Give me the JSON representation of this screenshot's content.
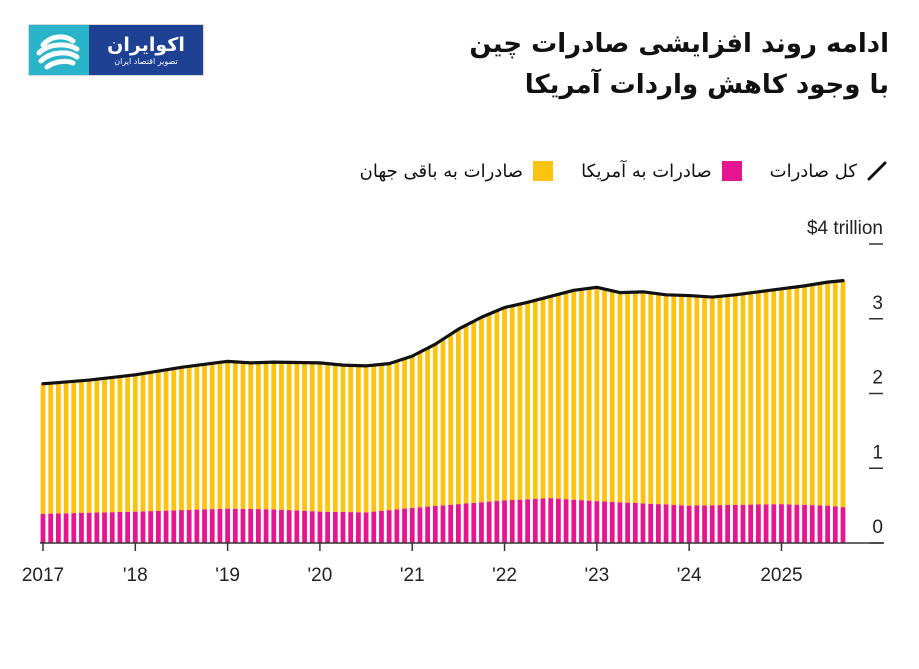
{
  "brand": {
    "name": "اکوایران",
    "tagline": "تصویر اقتصاد ایران"
  },
  "title_lines": [
    "ادامه روند افزایشی صادرات چین",
    "با وجود کاهش واردات آمریکا"
  ],
  "colors": {
    "rest": "#fcc310",
    "us": "#e5168f",
    "total": "#111111",
    "axis": "#333333",
    "logo_mark": "#29b4c9",
    "logo_bg": "#1f4194"
  },
  "legend": [
    {
      "key": "total",
      "label": "کل صادرات"
    },
    {
      "key": "us",
      "label": "صادرات به آمریکا"
    },
    {
      "key": "rest",
      "label": "صادرات به باقی جهان"
    }
  ],
  "chart_data": {
    "type": "bar",
    "title": "ادامه روند افزایشی صادرات چین با وجود کاهش واردات آمریکا",
    "unit": "$ trillion",
    "y_label_top": "$4 trillion",
    "ylim": [
      0,
      4
    ],
    "y_ticks": [
      {
        "value": 4,
        "label": "$4 trillion"
      },
      {
        "value": 3,
        "label": "3"
      },
      {
        "value": 2,
        "label": "2"
      },
      {
        "value": 1,
        "label": "1"
      },
      {
        "value": 0,
        "label": "0"
      }
    ],
    "x_ticks": [
      {
        "index": 0,
        "label": "2017"
      },
      {
        "index": 12,
        "label": "'18"
      },
      {
        "index": 24,
        "label": "'19"
      },
      {
        "index": 36,
        "label": "'20"
      },
      {
        "index": 48,
        "label": "'21"
      },
      {
        "index": 60,
        "label": "'22"
      },
      {
        "index": 72,
        "label": "'23"
      },
      {
        "index": 84,
        "label": "'24"
      },
      {
        "index": 96,
        "label": "2025"
      }
    ],
    "anchors": {
      "total": [
        [
          0,
          2.13
        ],
        [
          6,
          2.18
        ],
        [
          12,
          2.25
        ],
        [
          18,
          2.35
        ],
        [
          24,
          2.43
        ],
        [
          27,
          2.41
        ],
        [
          30,
          2.42
        ],
        [
          36,
          2.41
        ],
        [
          39,
          2.38
        ],
        [
          42,
          2.37
        ],
        [
          45,
          2.4
        ],
        [
          48,
          2.5
        ],
        [
          51,
          2.66
        ],
        [
          54,
          2.86
        ],
        [
          57,
          3.02
        ],
        [
          60,
          3.15
        ],
        [
          63,
          3.22
        ],
        [
          66,
          3.3
        ],
        [
          69,
          3.38
        ],
        [
          72,
          3.42
        ],
        [
          75,
          3.35
        ],
        [
          78,
          3.36
        ],
        [
          81,
          3.32
        ],
        [
          84,
          3.31
        ],
        [
          87,
          3.29
        ],
        [
          90,
          3.32
        ],
        [
          93,
          3.36
        ],
        [
          96,
          3.4
        ],
        [
          99,
          3.44
        ],
        [
          102,
          3.49
        ],
        [
          104,
          3.51
        ]
      ],
      "us": [
        [
          0,
          0.39
        ],
        [
          12,
          0.42
        ],
        [
          24,
          0.46
        ],
        [
          30,
          0.45
        ],
        [
          36,
          0.42
        ],
        [
          42,
          0.41
        ],
        [
          48,
          0.47
        ],
        [
          54,
          0.52
        ],
        [
          60,
          0.57
        ],
        [
          66,
          0.6
        ],
        [
          72,
          0.56
        ],
        [
          78,
          0.53
        ],
        [
          84,
          0.5
        ],
        [
          90,
          0.51
        ],
        [
          96,
          0.52
        ],
        [
          102,
          0.5
        ],
        [
          104,
          0.48
        ]
      ]
    },
    "series": [
      {
        "name": "کل صادرات",
        "key": "total",
        "kind": "line"
      },
      {
        "name": "صادرات به آمریکا",
        "key": "us",
        "kind": "stacked-bar"
      },
      {
        "name": "صادرات به باقی جهان",
        "key": "rest",
        "kind": "stacked-bar"
      }
    ],
    "grid": false
  }
}
